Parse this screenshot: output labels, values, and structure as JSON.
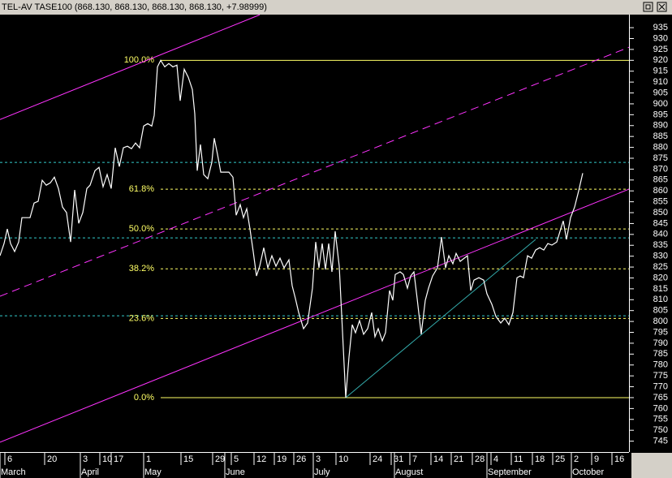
{
  "chart_data": {
    "type": "line",
    "title": "TEL-AV TASE100 (868.130, 868.130, 868.130, 868.130, +7.98999)",
    "color": "#ffffff",
    "x": [
      0,
      1,
      1.8,
      2.6,
      3.6,
      4.6,
      5.4,
      6.4,
      7.4,
      8.4,
      9.4,
      10.4,
      11.4,
      12.4,
      13.4,
      14.4,
      15.4,
      16.4,
      17.4,
      18.4,
      19.4,
      20.4,
      21.4,
      22.2,
      23.4,
      24.4,
      25.4,
      26.4,
      27.4,
      28.4,
      29.4,
      30.4,
      31.4,
      32.4,
      33.4,
      34.4,
      35.4,
      36.4,
      37.4,
      38,
      38.8,
      39.6,
      40.6,
      41.6,
      42.6,
      43.6,
      44.4,
      45.4,
      46.4,
      47.4,
      48,
      48.6,
      49.4,
      50.2,
      51.2,
      52.2,
      52.8,
      53.6,
      54.4,
      55.4,
      56.4,
      57.4,
      58.2,
      59.2,
      60,
      60.8,
      61.6,
      62.4,
      63.2,
      64,
      65,
      66,
      67,
      68,
      69,
      70,
      71.2,
      72,
      72.8,
      73.6,
      74.8,
      75.8,
      77,
      77.8,
      78.6,
      79.4,
      80.2,
      81,
      81.8,
      82.6,
      83.6,
      84.2,
      85.2,
      86,
      86.8,
      87.6,
      88.6,
      89.6,
      90.6,
      91.6,
      92.4,
      93.2,
      94.2,
      95,
      96,
      96.8,
      97.4,
      98.6,
      99.4,
      100.4,
      101.2,
      102,
      102.8,
      103.8,
      104.8,
      105.6,
      106.6,
      107.8,
      108.8,
      109.8,
      110.6,
      111.6,
      112.4,
      113.4,
      114.4,
      115.2,
      116,
      116.8,
      118,
      119.2,
      120,
      121.2,
      122.2,
      123.4,
      124.4,
      125.4,
      126.4,
      127.4,
      128.2,
      129,
      130,
      131,
      132,
      133,
      134,
      135,
      136,
      137.2,
      138,
      138.8,
      139.6,
      140.6,
      141.6,
      142.6,
      143.6
    ],
    "values": [
      830.2,
      835.8,
      842.5,
      835.8,
      832.1,
      836.5,
      847.7,
      847.7,
      847.7,
      854.4,
      855.2,
      864.9,
      862.6,
      863.7,
      866.3,
      861.1,
      852.6,
      850.0,
      836.5,
      860.4,
      845.1,
      850.0,
      861.1,
      862.6,
      869.3,
      870.8,
      861.9,
      867.5,
      861.1,
      879.8,
      871.2,
      879.8,
      880.5,
      879.4,
      882.0,
      879.8,
      889.8,
      890.9,
      889.8,
      894.7,
      917.0,
      920.0,
      917.0,
      918.5,
      917.0,
      917.8,
      901.4,
      915.9,
      912.2,
      906.6,
      895.4,
      869.3,
      881.3,
      867.5,
      865.6,
      873.1,
      884.2,
      876.8,
      868.6,
      868.6,
      868.6,
      866.3,
      848.8,
      853.7,
      847.7,
      851.8,
      842.5,
      832.1,
      820.9,
      825.4,
      833.9,
      824.6,
      830.2,
      825.4,
      829.1,
      824.6,
      828.3,
      816.4,
      810.5,
      804.1,
      796.7,
      799.3,
      815.3,
      836.5,
      824.6,
      835.8,
      823.9,
      835.8,
      822.8,
      841.4,
      825.4,
      803.0,
      765.0,
      783.6,
      798.5,
      794.8,
      800.4,
      794.1,
      796.7,
      804.1,
      793.0,
      796.7,
      791.1,
      794.8,
      814.2,
      809.7,
      821.6,
      822.8,
      821.6,
      815.3,
      820.9,
      822.8,
      810.5,
      794.1,
      809.7,
      815.3,
      820.9,
      824.6,
      838.8,
      824.6,
      830.2,
      826.5,
      831.3,
      827.6,
      829.1,
      830.2,
      814.2,
      819.0,
      820.1,
      819.0,
      812.7,
      807.9,
      802.3,
      799.3,
      801.5,
      798.5,
      804.1,
      820.1,
      820.9,
      820.1,
      830.2,
      829.1,
      832.8,
      833.9,
      832.8,
      835.8,
      835.1,
      836.5,
      841.4,
      846.2,
      837.7,
      847.7,
      852.6,
      860.0,
      868.13
    ],
    "xlim": [
      0,
      155
    ],
    "ylim": [
      740,
      941
    ],
    "yticks": [
      745,
      750,
      755,
      760,
      765,
      770,
      775,
      780,
      785,
      790,
      795,
      800,
      805,
      810,
      815,
      820,
      825,
      830,
      835,
      840,
      845,
      850,
      855,
      860,
      865,
      870,
      875,
      880,
      885,
      890,
      895,
      900,
      905,
      910,
      915,
      920,
      925,
      930,
      935
    ],
    "xticks": [
      {
        "value": 1.2,
        "label": "6"
      },
      {
        "value": 11,
        "label": "20"
      },
      {
        "value": 19.8,
        "label": "3"
      },
      {
        "value": 24.6,
        "label": "10"
      },
      {
        "value": 27.4,
        "label": "17"
      },
      {
        "value": 35.4,
        "label": "1"
      },
      {
        "value": 44.6,
        "label": "15"
      },
      {
        "value": 52.4,
        "label": "29"
      },
      {
        "value": 57,
        "label": "5"
      },
      {
        "value": 62.6,
        "label": "12"
      },
      {
        "value": 67.6,
        "label": "19"
      },
      {
        "value": 72.4,
        "label": "26"
      },
      {
        "value": 77.2,
        "label": "3"
      },
      {
        "value": 82.8,
        "label": "10"
      },
      {
        "value": 91.2,
        "label": "24"
      },
      {
        "value": 96.4,
        "label": "31"
      },
      {
        "value": 101,
        "label": "7"
      },
      {
        "value": 106.2,
        "label": "14"
      },
      {
        "value": 111.2,
        "label": "21"
      },
      {
        "value": 116.4,
        "label": "28"
      },
      {
        "value": 121,
        "label": "4"
      },
      {
        "value": 126,
        "label": "11"
      },
      {
        "value": 131.2,
        "label": "18"
      },
      {
        "value": 136.2,
        "label": "25"
      },
      {
        "value": 140.8,
        "label": "2"
      },
      {
        "value": 145.8,
        "label": "9"
      },
      {
        "value": 150.8,
        "label": "16"
      }
    ],
    "month_ticks": [
      {
        "value": 0,
        "label": "March"
      },
      {
        "value": 19.8,
        "label": "April"
      },
      {
        "value": 35.4,
        "label": "May"
      },
      {
        "value": 55.4,
        "label": "June"
      },
      {
        "value": 77.2,
        "label": "July"
      },
      {
        "value": 97.2,
        "label": "August"
      },
      {
        "value": 120,
        "label": "September"
      },
      {
        "value": 140.8,
        "label": "October"
      }
    ],
    "fib_levels": [
      {
        "label": "100.0%",
        "value": 920,
        "dash": false
      },
      {
        "label": "61.8%",
        "value": 860.8,
        "dash": true
      },
      {
        "label": "50.0%",
        "value": 842.5,
        "dash": true
      },
      {
        "label": "38.2%",
        "value": 824.2,
        "dash": true
      },
      {
        "label": "23.6%",
        "value": 801.4,
        "dash": true
      },
      {
        "label": "0.0%",
        "value": 765,
        "dash": false
      }
    ],
    "fib_color": "#ffff66",
    "ref_lines": {
      "color": "#33cccc",
      "values": [
        873.1,
        838.4,
        802.6
      ]
    },
    "trend_lines": [
      {
        "color": "#ff33ff",
        "dash": false,
        "x": [
          0,
          64
        ],
        "values": [
          892.8,
          940.9
        ]
      },
      {
        "color": "#ff33ff",
        "dash": true,
        "x": [
          0,
          155
        ],
        "values": [
          811.6,
          926.0
        ]
      },
      {
        "color": "#ff33ff",
        "dash": false,
        "x": [
          0,
          155
        ],
        "values": [
          744.5,
          860.8
        ]
      },
      {
        "color": "#33aaaa",
        "dash": false,
        "x": [
          85.2,
          132
        ],
        "values": [
          765,
          837.7
        ]
      }
    ]
  }
}
